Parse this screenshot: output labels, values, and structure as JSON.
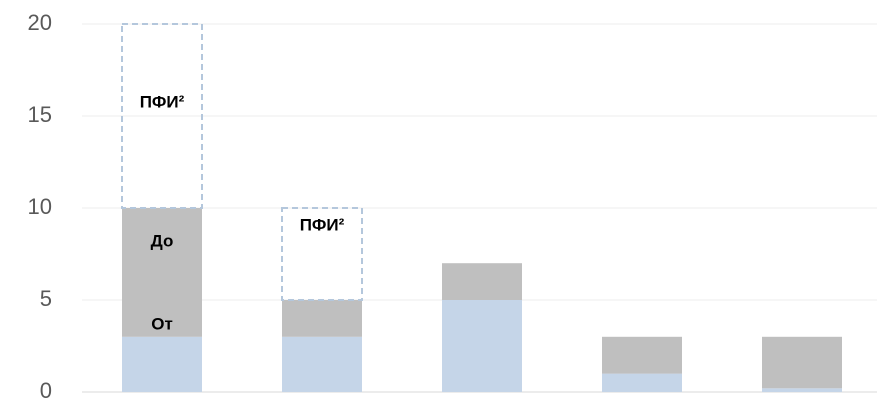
{
  "chart_data": {
    "type": "stacked_bar",
    "categories": [
      null,
      null,
      null,
      null,
      null
    ],
    "series": [
      {
        "name": "От",
        "color": "#c5d5e8",
        "values": [
          3,
          3,
          5,
          1,
          0.2
        ]
      },
      {
        "name": "До",
        "color": "#bfbfbf",
        "values": [
          7,
          2,
          2,
          2,
          2.8
        ]
      },
      {
        "name": "ПФИ²",
        "color": "#b4c7dc",
        "style": "dashed",
        "values": [
          10,
          5,
          null,
          null,
          null
        ]
      }
    ],
    "ylim": [
      0,
      20
    ],
    "yticks": [
      0,
      5,
      10,
      15,
      20
    ],
    "grid": true
  }
}
